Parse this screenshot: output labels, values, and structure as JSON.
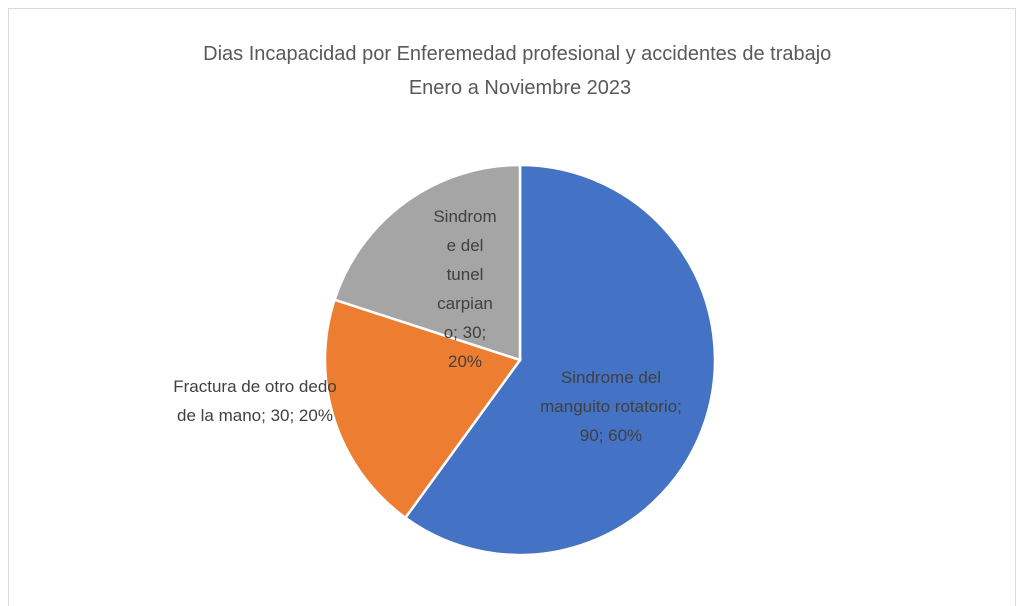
{
  "chart_data": {
    "type": "pie",
    "title": [
      "Dias Incapacidad por Enferemedad profesional y accidentes de trabajo",
      "Enero a Noviembre 2023"
    ],
    "values": [
      90,
      30,
      30
    ],
    "value_labels": [
      "Sindrome del manguito rotatorio; 90; 60%",
      "Fractura de otro dedo de la mano; 30; 20%",
      "Sindrome del tunel carpiano; 30; 20%"
    ],
    "colors": [
      "#4472c4",
      "#ed7d31",
      "#a5a5a5"
    ]
  }
}
